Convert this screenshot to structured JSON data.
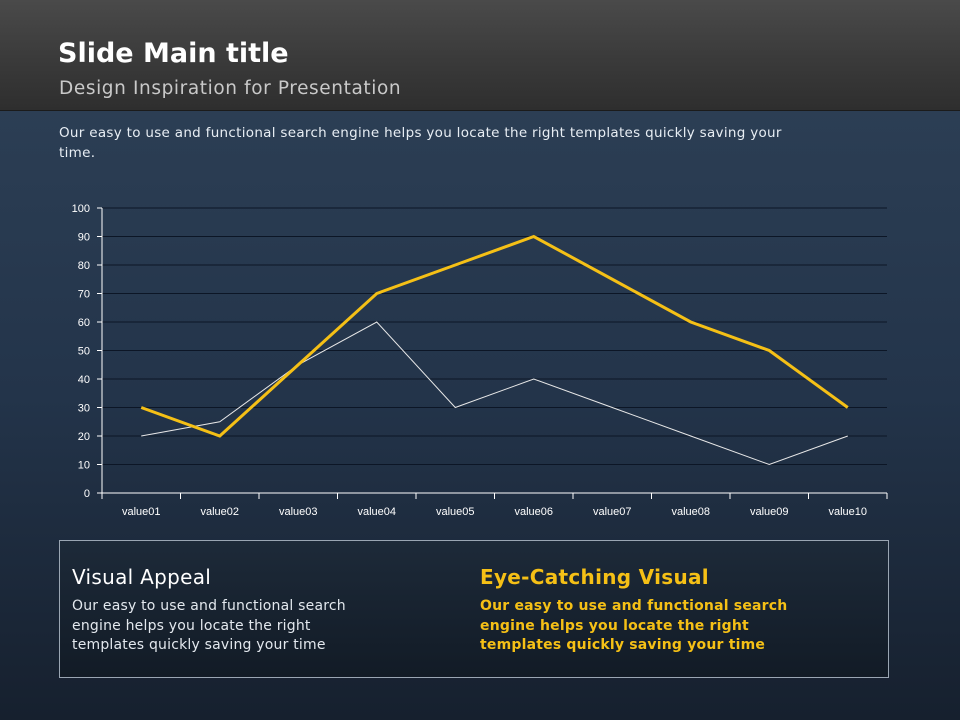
{
  "slide": {
    "title": "Slide Main title",
    "subtitle": "Design Inspiration for Presentation",
    "intro": "Our easy to use and functional search engine helps you locate the right templates quickly saving your time."
  },
  "colors": {
    "series_primary": "#f5c016",
    "series_secondary": "#e8e8e8",
    "gridline": "#0c1626",
    "axis": "#ffffff",
    "highlight_text": "#f5c016"
  },
  "chart_data": {
    "type": "line",
    "title": "",
    "xlabel": "",
    "ylabel": "",
    "categories": [
      "value01",
      "value02",
      "value03",
      "value04",
      "value05",
      "value06",
      "value07",
      "value08",
      "value09",
      "value10"
    ],
    "series": [
      {
        "values": [
          30,
          20,
          45,
          70,
          80,
          90,
          75,
          60,
          50,
          30
        ],
        "color": "#f5c016"
      },
      {
        "values": [
          20,
          25,
          45,
          60,
          30,
          40,
          30,
          20,
          10,
          20
        ],
        "color": "#e8e8e8"
      }
    ],
    "ylim": [
      0,
      100
    ],
    "yticks": [
      0,
      10,
      20,
      30,
      40,
      50,
      60,
      70,
      80,
      90,
      100
    ],
    "grid": true,
    "legend": "none"
  },
  "footer_box": {
    "left": {
      "heading": "Visual Appeal",
      "text": "Our easy to use and functional search engine helps you locate the right templates quickly saving your time"
    },
    "right": {
      "heading": "Eye-Catching Visual",
      "text": "Our easy to use and functional search engine helps you locate the right templates quickly saving your time"
    }
  }
}
